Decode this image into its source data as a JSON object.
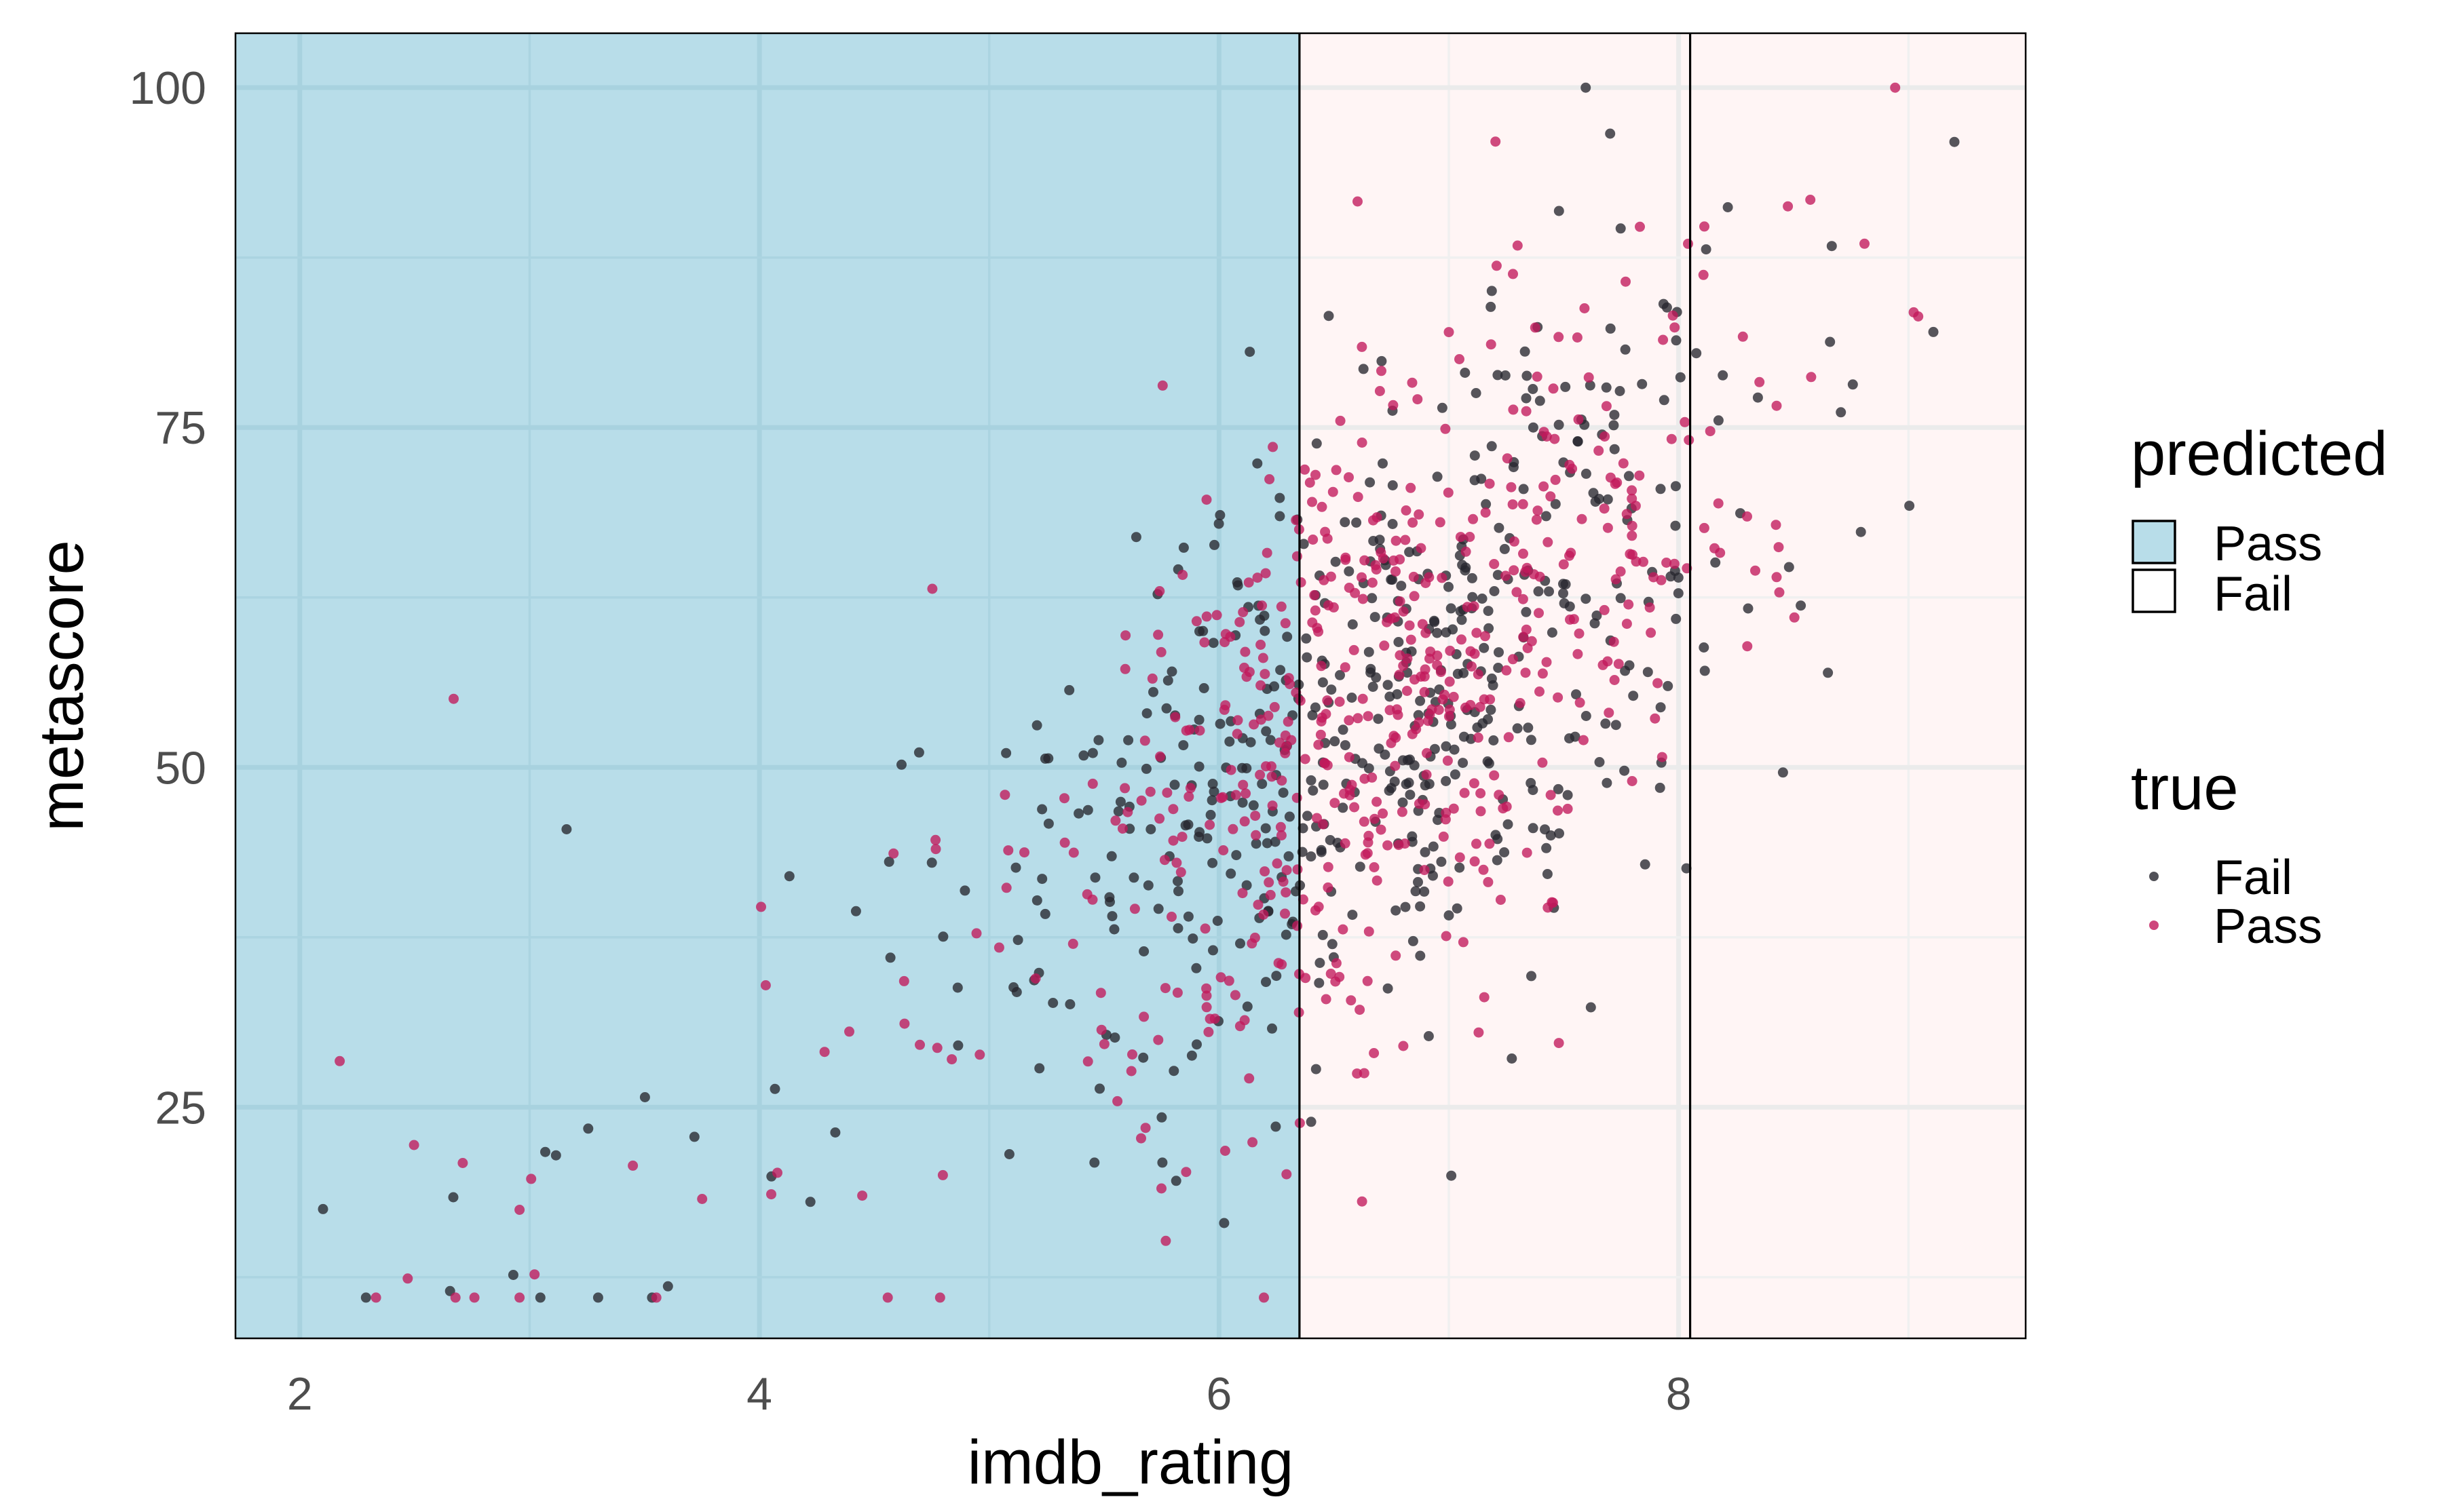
{
  "chart_data": {
    "type": "scatter",
    "title": "",
    "xlabel": "imdb_rating",
    "ylabel": "metascore",
    "xlim": [
      1.72,
      9.51
    ],
    "ylim": [
      8.0,
      104.0
    ],
    "x_ticks": [
      2,
      4,
      6,
      8
    ],
    "y_ticks": [
      25,
      50,
      75,
      100
    ],
    "grid": true,
    "regions": [
      {
        "predicted": "Pass",
        "x_from": 1.72,
        "x_to": 6.35,
        "color": "#add8e6"
      },
      {
        "predicted": "Fail",
        "x_from": 6.35,
        "x_to": 9.51,
        "color": "#fff5f5"
      }
    ],
    "boundaries": [
      6.35,
      8.05
    ],
    "legend_position": "right",
    "legend": {
      "predicted": {
        "title": "predicted",
        "items": [
          {
            "label": "Pass",
            "color": "#b8dde9"
          },
          {
            "label": "Fail",
            "color": "#ffffff"
          }
        ]
      },
      "true": {
        "title": "true",
        "items": [
          {
            "label": "Fail",
            "color": "#26262e"
          },
          {
            "label": "Pass",
            "color": "#c2185b"
          }
        ]
      }
    },
    "series": [
      {
        "name": "Fail",
        "color": "#26262e",
        "points": []
      },
      {
        "name": "Pass",
        "color": "#c2185b",
        "points": []
      }
    ]
  }
}
